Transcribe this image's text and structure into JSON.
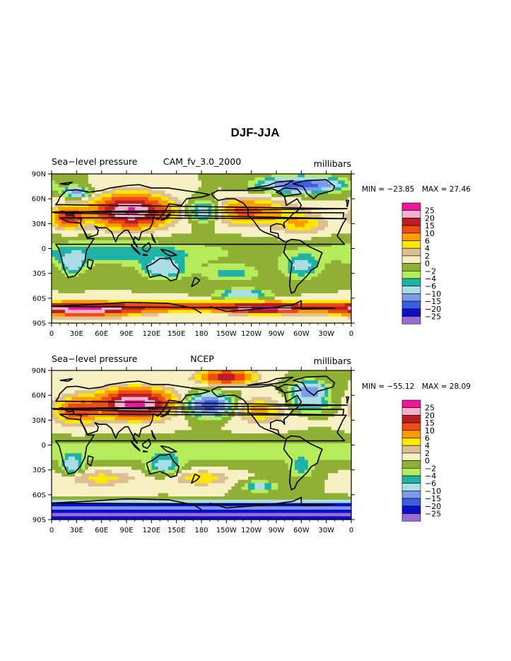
{
  "chart_data": {
    "type": "heatmap",
    "title": "DJF-JJA",
    "legend_placement": "right",
    "x_tick_labels": [
      "0",
      "30E",
      "60E",
      "90E",
      "120E",
      "150E",
      "180",
      "150W",
      "120W",
      "90W",
      "60W",
      "30W",
      "0"
    ],
    "y_tick_labels": [
      "90N",
      "60N",
      "30N",
      "0",
      "30S",
      "60S",
      "90S"
    ],
    "xlim": [
      0,
      360
    ],
    "ylim": [
      -90,
      90
    ],
    "contour_levels": [
      -25,
      -20,
      -15,
      -10,
      -6,
      -4,
      -2,
      0,
      2,
      4,
      6,
      10,
      15,
      20,
      25
    ],
    "level_labels": [
      "25",
      "20",
      "15",
      "10",
      "6",
      "4",
      "2",
      "0",
      "−2",
      "−4",
      "−6",
      "−10",
      "−15",
      "−20",
      "−25"
    ],
    "level_colors": [
      "#f0169a",
      "#f7b1cc",
      "#b81f25",
      "#f24a14",
      "#fb9c00",
      "#fde900",
      "#dcbf92",
      "#f6f0c4",
      "#8fb035",
      "#b6ec5c",
      "#1fb2a6",
      "#abdde5",
      "#7b9ae8",
      "#3a5ede",
      "#0b0dc7",
      "#9a6bd6"
    ],
    "panels": [
      {
        "left_title": "Sea−level pressure",
        "center_title": "CAM_fv_3.0_2000",
        "right_title": "millibars",
        "min_label": "MIN = −23.85",
        "max_label": "MAX =  27.46",
        "min": -23.85,
        "max": 27.46
      },
      {
        "left_title": "Sea−level pressure",
        "center_title": "NCEP",
        "right_title": "millibars",
        "min_label": "MIN = −55.12",
        "max_label": "MAX =  28.09",
        "min": -55.12,
        "max": 28.09
      }
    ]
  }
}
